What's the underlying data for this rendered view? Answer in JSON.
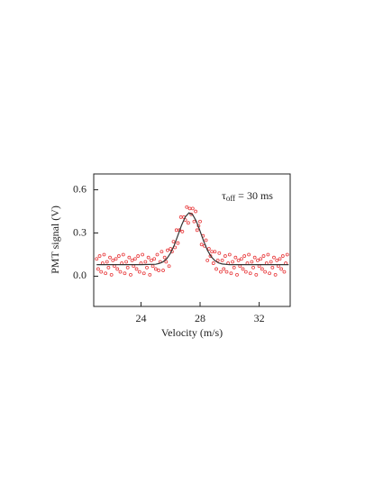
{
  "chart_data": {
    "type": "scatter",
    "x_label": "Velocity (m/s)",
    "y_label": "PMT signal (V)",
    "annotation": {
      "symbol": "τ",
      "sub": "off",
      "text": " = 30 ms"
    },
    "xlim": [
      20.8,
      34.1
    ],
    "ylim": [
      -0.21,
      0.71
    ],
    "xticks": [
      24,
      28,
      32
    ],
    "yticks": [
      {
        "value": 0,
        "label": "0.0"
      },
      {
        "value": 0.3,
        "label": "0.3"
      },
      {
        "value": 0.6,
        "label": "0.6"
      }
    ],
    "series": [
      {
        "type": "scatter",
        "color": "#e8383a",
        "x": [
          21.0,
          21.1,
          21.2,
          21.3,
          21.4,
          21.5,
          21.6,
          21.7,
          21.8,
          21.9,
          22.0,
          22.1,
          22.2,
          22.3,
          22.4,
          22.5,
          22.6,
          22.7,
          22.8,
          22.9,
          23.0,
          23.1,
          23.2,
          23.3,
          23.4,
          23.5,
          23.6,
          23.7,
          23.8,
          23.9,
          24.0,
          24.1,
          24.2,
          24.3,
          24.4,
          24.5,
          24.6,
          24.7,
          24.8,
          24.9,
          25.0,
          25.1,
          25.2,
          25.3,
          25.4,
          25.5,
          25.6,
          25.7,
          25.8,
          25.9,
          26.0,
          26.1,
          26.2,
          26.3,
          26.4,
          26.5,
          26.6,
          26.7,
          26.8,
          26.9,
          27.0,
          27.1,
          27.2,
          27.3,
          27.4,
          27.5,
          27.6,
          27.7,
          27.8,
          27.9,
          28.0,
          28.1,
          28.2,
          28.3,
          28.4,
          28.5,
          28.6,
          28.7,
          28.8,
          28.9,
          29.0,
          29.1,
          29.2,
          29.3,
          29.4,
          29.5,
          29.6,
          29.7,
          29.8,
          29.9,
          30.0,
          30.1,
          30.2,
          30.3,
          30.4,
          30.5,
          30.6,
          30.7,
          30.8,
          30.9,
          31.0,
          31.1,
          31.2,
          31.3,
          31.4,
          31.5,
          31.6,
          31.7,
          31.8,
          31.9,
          32.0,
          32.1,
          32.2,
          32.3,
          32.4,
          32.5,
          32.6,
          32.7,
          32.8,
          32.9,
          33.0,
          33.1,
          33.2,
          33.3,
          33.4,
          33.5,
          33.6,
          33.7,
          33.8,
          33.9
        ],
        "values": [
          0.12,
          0.05,
          0.14,
          0.03,
          0.09,
          0.15,
          0.02,
          0.1,
          0.06,
          0.13,
          0.01,
          0.11,
          0.07,
          0.12,
          0.05,
          0.14,
          0.03,
          0.09,
          0.15,
          0.02,
          0.1,
          0.06,
          0.13,
          0.01,
          0.11,
          0.07,
          0.12,
          0.05,
          0.14,
          0.03,
          0.09,
          0.15,
          0.02,
          0.1,
          0.06,
          0.13,
          0.01,
          0.11,
          0.07,
          0.12,
          0.05,
          0.15,
          0.04,
          0.1,
          0.17,
          0.04,
          0.13,
          0.1,
          0.18,
          0.07,
          0.19,
          0.17,
          0.24,
          0.2,
          0.32,
          0.23,
          0.32,
          0.41,
          0.31,
          0.41,
          0.39,
          0.48,
          0.37,
          0.47,
          0.43,
          0.47,
          0.38,
          0.45,
          0.32,
          0.35,
          0.38,
          0.22,
          0.28,
          0.21,
          0.25,
          0.11,
          0.19,
          0.14,
          0.17,
          0.09,
          0.17,
          0.05,
          0.11,
          0.16,
          0.03,
          0.11,
          0.05,
          0.14,
          0.03,
          0.09,
          0.15,
          0.02,
          0.1,
          0.06,
          0.13,
          0.01,
          0.11,
          0.07,
          0.12,
          0.05,
          0.14,
          0.03,
          0.09,
          0.15,
          0.02,
          0.1,
          0.06,
          0.13,
          0.01,
          0.11,
          0.07,
          0.12,
          0.05,
          0.14,
          0.03,
          0.09,
          0.15,
          0.02,
          0.1,
          0.06,
          0.13,
          0.01,
          0.11,
          0.07,
          0.12,
          0.05,
          0.14,
          0.03,
          0.09,
          0.15
        ]
      },
      {
        "type": "line",
        "color": "#333333",
        "x": [
          21,
          22,
          23,
          24,
          25,
          25.25,
          25.5,
          25.75,
          26,
          26.25,
          26.5,
          26.75,
          27,
          27.25,
          27.5,
          27.75,
          28,
          28.25,
          28.5,
          28.75,
          29,
          29.25,
          29.5,
          30,
          31,
          32,
          33,
          34
        ],
        "values": [
          0.08,
          0.08,
          0.08,
          0.08,
          0.083,
          0.089,
          0.1,
          0.122,
          0.16,
          0.215,
          0.284,
          0.355,
          0.412,
          0.44,
          0.427,
          0.381,
          0.313,
          0.241,
          0.18,
          0.136,
          0.108,
          0.092,
          0.085,
          0.08,
          0.08,
          0.08,
          0.08,
          0.08
        ]
      }
    ]
  }
}
